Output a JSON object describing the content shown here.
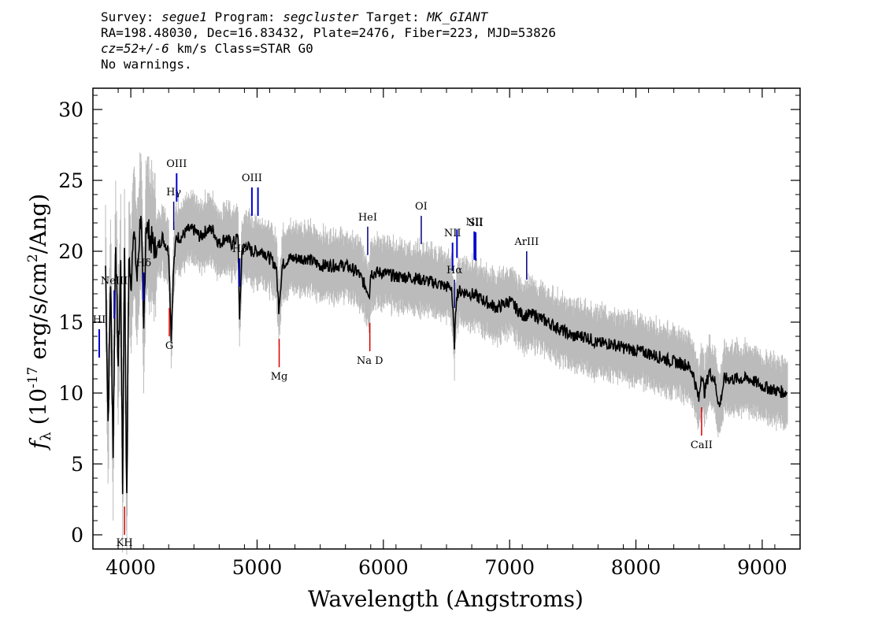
{
  "header": {
    "line1": {
      "survey_label": "Survey: ",
      "survey": "segue1",
      "program_label": " Program: ",
      "program": "segcluster",
      "target_label": " Target: ",
      "target": "MK_GIANT"
    },
    "line2": "RA=198.48030, Dec=16.83432, Plate=2476, Fiber=223, MJD=53826",
    "line3": {
      "cz": "cz=52+/-6",
      "rest": " km/s Class=STAR G0"
    },
    "line4": "No warnings."
  },
  "colors": {
    "emission": "#0000cc",
    "absorption": "#dd0000",
    "spectrum": "#000000",
    "error_band": "#bbbbbb",
    "neutral": "#000080"
  },
  "chart_data": {
    "type": "line",
    "title": "",
    "xlabel": "Wavelength (Angstroms)",
    "ylabel": "f_λ (10^-17 erg/s/cm²/Ang)",
    "xlim": [
      3700,
      9300
    ],
    "ylim": [
      -1,
      31.5
    ],
    "xticks": [
      4000,
      5000,
      6000,
      7000,
      8000,
      9000
    ],
    "yticks": [
      0,
      5,
      10,
      15,
      20,
      25,
      30
    ],
    "series": [
      {
        "role": "flux",
        "x": [
          3800,
          3820,
          3840,
          3860,
          3880,
          3900,
          3920,
          3935,
          3950,
          3968,
          3985,
          4000,
          4020,
          4050,
          4080,
          4102,
          4120,
          4150,
          4200,
          4250,
          4300,
          4320,
          4340,
          4360,
          4400,
          4450,
          4500,
          4550,
          4600,
          4650,
          4700,
          4750,
          4800,
          4850,
          4861,
          4880,
          4920,
          4950,
          5000,
          5050,
          5100,
          5150,
          5172,
          5200,
          5250,
          5300,
          5400,
          5500,
          5600,
          5700,
          5800,
          5890,
          5900,
          6000,
          6100,
          6200,
          6300,
          6400,
          6500,
          6540,
          6563,
          6580,
          6600,
          6700,
          6800,
          6900,
          7000,
          7100,
          7200,
          7300,
          7400,
          7500,
          7600,
          7700,
          7800,
          7900,
          8000,
          8100,
          8200,
          8300,
          8400,
          8450,
          8498,
          8520,
          8542,
          8580,
          8620,
          8662,
          8700,
          8800,
          8900,
          9000,
          9100,
          9200
        ],
        "y": [
          19,
          8,
          18,
          6,
          21,
          12,
          19,
          3,
          21,
          2,
          20,
          17,
          22,
          18,
          23,
          14,
          22,
          21,
          20,
          21,
          20,
          14,
          19,
          21,
          21,
          21.5,
          21.5,
          21,
          21.5,
          21.5,
          20.5,
          21,
          20.5,
          21,
          15,
          20,
          20.5,
          20,
          20,
          20,
          19.5,
          19,
          16,
          19,
          19.5,
          19.5,
          19.5,
          19,
          19,
          19,
          18.5,
          17,
          18.5,
          18.5,
          18.2,
          18.2,
          18,
          17.8,
          17.5,
          17.5,
          13.5,
          17,
          17.2,
          17,
          16.5,
          16,
          16.5,
          15.5,
          15.5,
          15,
          14.5,
          14,
          14,
          13.5,
          13.5,
          13.2,
          13,
          12.8,
          12.5,
          12.2,
          12,
          11.5,
          9.5,
          11.5,
          10,
          11.5,
          11,
          9,
          11,
          11,
          11,
          10.5,
          10.2,
          10
        ]
      }
    ],
    "lines": [
      {
        "label": "HI",
        "x": 3750,
        "kind": "emission"
      },
      {
        "label": "NeIII",
        "x": 3869,
        "kind": "emission"
      },
      {
        "label": "Hδ",
        "x": 4102,
        "kind": "emission"
      },
      {
        "label": "Hγ",
        "x": 4340,
        "kind": "emission-neutral"
      },
      {
        "label": "OIII",
        "x": 4363,
        "kind": "emission"
      },
      {
        "label": "Hβ",
        "x": 4861,
        "kind": "emission"
      },
      {
        "label": "OIII",
        "x": 4959,
        "kind": "emission"
      },
      {
        "label": "",
        "x": 5007,
        "kind": "emission"
      },
      {
        "label": "HeI",
        "x": 5876,
        "kind": "emission-neutral"
      },
      {
        "label": "OI",
        "x": 6300,
        "kind": "emission-neutral"
      },
      {
        "label": "NII",
        "x": 6548,
        "kind": "emission"
      },
      {
        "label": "Hα",
        "x": 6563,
        "kind": "emission-neutral"
      },
      {
        "label": "",
        "x": 6583,
        "kind": "emission"
      },
      {
        "label": "NII",
        "x": 6720,
        "kind": "emission"
      },
      {
        "label": "SII",
        "x": 6731,
        "kind": "emission"
      },
      {
        "label": "ArIII",
        "x": 7135,
        "kind": "emission-neutral"
      },
      {
        "label": "KH",
        "x": 3950,
        "kind": "absorption"
      },
      {
        "label": "G",
        "x": 4305,
        "kind": "absorption"
      },
      {
        "label": "Mg",
        "x": 5175,
        "kind": "absorption"
      },
      {
        "label": "Na D",
        "x": 5893,
        "kind": "absorption"
      },
      {
        "label": "CaII",
        "x": 8520,
        "kind": "absorption"
      }
    ]
  }
}
